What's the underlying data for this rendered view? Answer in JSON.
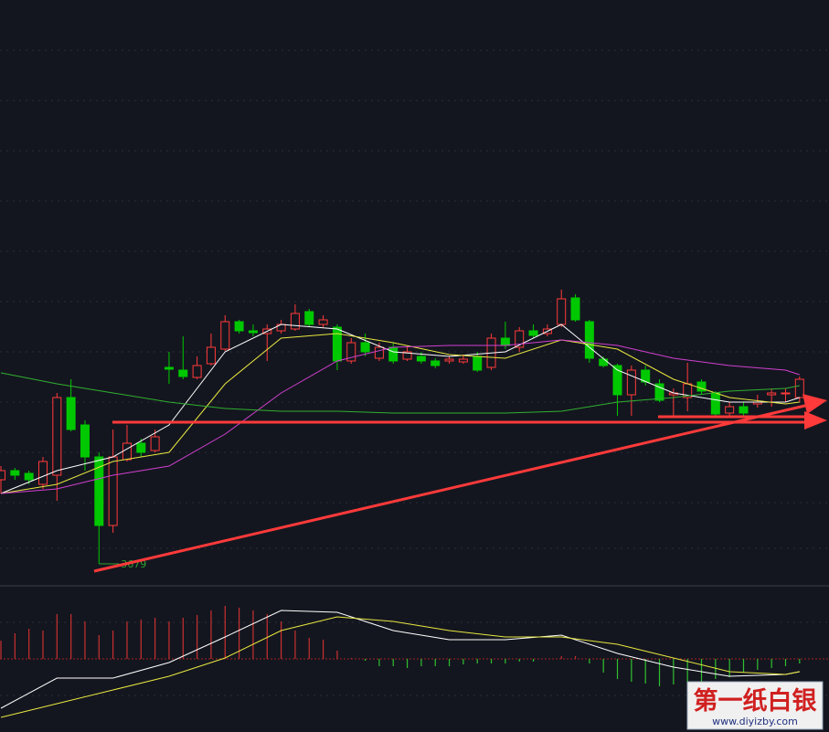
{
  "chart_data": [
    {
      "type": "candlestick",
      "open": [
        3771,
        3781,
        3778,
        3766,
        3776,
        3861,
        3831,
        3796,
        3721,
        3793,
        3811,
        3803,
        3894,
        3891,
        3883,
        3898,
        3914,
        3944,
        3934,
        3931,
        3934,
        3936,
        3955,
        3941,
        3938,
        3901,
        3921,
        3904,
        3916,
        3903,
        3906,
        3901,
        3901,
        3900,
        3906,
        3894,
        3926,
        3916,
        3934,
        3931,
        3941,
        3970,
        3944,
        3903,
        3896,
        3864,
        3891,
        3876,
        3864,
        3861,
        3878,
        3866,
        3844,
        3851,
        3854,
        3864,
        3865,
        3861
      ],
      "high": [
        3786,
        3784,
        3781,
        3796,
        3866,
        3881,
        3836,
        3801,
        3826,
        3831,
        3816,
        3826,
        3911,
        3928,
        3906,
        3931,
        3951,
        3946,
        3941,
        3941,
        3946,
        3963,
        3958,
        3951,
        3941,
        3926,
        3931,
        3921,
        3921,
        3916,
        3911,
        3904,
        3906,
        3908,
        3911,
        3931,
        3944,
        3938,
        3941,
        3941,
        3979,
        3974,
        3946,
        3906,
        3898,
        3896,
        3896,
        3881,
        3871,
        3899,
        3881,
        3868,
        3856,
        3856,
        3864,
        3871,
        3871,
        3884
      ],
      "low": [
        3756,
        3771,
        3766,
        3761,
        3748,
        3824,
        3781,
        3679,
        3713,
        3791,
        3796,
        3801,
        3876,
        3881,
        3881,
        3896,
        3912,
        3931,
        3928,
        3901,
        3931,
        3934,
        3938,
        3938,
        3891,
        3898,
        3906,
        3901,
        3898,
        3901,
        3898,
        3893,
        3898,
        3898,
        3889,
        3891,
        3914,
        3911,
        3926,
        3928,
        3938,
        3944,
        3899,
        3894,
        3841,
        3841,
        3874,
        3856,
        3841,
        3846,
        3864,
        3841,
        3841,
        3841,
        3850,
        3851,
        3856,
        3856
      ],
      "close": [
        3781,
        3776,
        3771,
        3791,
        3861,
        3826,
        3796,
        3721,
        3796,
        3811,
        3801,
        3818,
        3892,
        3884,
        3896,
        3916,
        3944,
        3934,
        3932,
        3936,
        3941,
        3953,
        3941,
        3946,
        3901,
        3921,
        3911,
        3916,
        3901,
        3911,
        3901,
        3896,
        3903,
        3903,
        3891,
        3926,
        3918,
        3934,
        3929,
        3936,
        3969,
        3946,
        3904,
        3896,
        3864,
        3891,
        3878,
        3858,
        3866,
        3876,
        3868,
        3843,
        3851,
        3844,
        3856,
        3866,
        3866,
        3881
      ],
      "up_color": "#ff3a3a",
      "down_color": "#00c800",
      "ylim": [
        3656,
        4296
      ],
      "ma": {
        "x": [
          0,
          4,
          8,
          12,
          16,
          20,
          24,
          28,
          32,
          36,
          40,
          44,
          48,
          52,
          56,
          57
        ],
        "series": [
          {
            "color": "#ffffff",
            "values": [
              3756,
              3781,
              3796,
              3831,
              3911,
              3941,
              3936,
              3911,
              3906,
              3911,
              3941,
              3891,
              3866,
              3856,
              3856,
              3861
            ]
          },
          {
            "color": "#e8e840",
            "values": [
              3756,
              3766,
              3791,
              3801,
              3876,
              3926,
              3931,
              3921,
              3908,
              3904,
              3924,
              3914,
              3881,
              3861,
              3854,
              3856
            ]
          },
          {
            "color": "#d040d0",
            "values": [
              3756,
              3761,
              3776,
              3786,
              3821,
              3866,
              3901,
              3916,
              3918,
              3918,
              3924,
              3918,
              3904,
              3896,
              3891,
              3886
            ]
          },
          {
            "color": "#30b030",
            "values": [
              3888,
              3876,
              3866,
              3856,
              3849,
              3846,
              3846,
              3844,
              3844,
              3844,
              3846,
              3856,
              3861,
              3868,
              3871,
              3874
            ]
          }
        ]
      }
    },
    {
      "type": "macd",
      "histogram": [
        20,
        28,
        33,
        31,
        49,
        49,
        41,
        26,
        31,
        41,
        43,
        45,
        41,
        45,
        48,
        53,
        58,
        56,
        53,
        49,
        41,
        31,
        23,
        21,
        9,
        1,
        -2,
        -8,
        -8,
        -10,
        -8,
        -8,
        -8,
        -6,
        -5,
        -5,
        -5,
        -3,
        -3,
        0,
        3,
        3,
        -5,
        -15,
        -22,
        -25,
        -27,
        -30,
        -28,
        -28,
        -26,
        -22,
        -20,
        -15,
        -12,
        -10,
        -8,
        -5
      ],
      "up_color": "#c83030",
      "down_color": "#30c030",
      "ylim": [
        -80,
        80
      ],
      "x": [
        0,
        4,
        8,
        12,
        16,
        20,
        24,
        28,
        32,
        36,
        40,
        44,
        48,
        52,
        56,
        57
      ],
      "series": [
        {
          "color": "#ffffff",
          "values": [
            -54,
            -21,
            -21,
            -4,
            24,
            53,
            51,
            31,
            21,
            21,
            26,
            6,
            -9,
            -19,
            -17,
            -14
          ]
        },
        {
          "color": "#e8e840",
          "values": [
            -64,
            -49,
            -34,
            -19,
            1,
            31,
            46,
            41,
            31,
            24,
            24,
            16,
            1,
            -14,
            -17,
            -14
          ]
        }
      ]
    }
  ],
  "watermark": {
    "title": "第一纸白银",
    "url": "www.diyizby.com"
  }
}
